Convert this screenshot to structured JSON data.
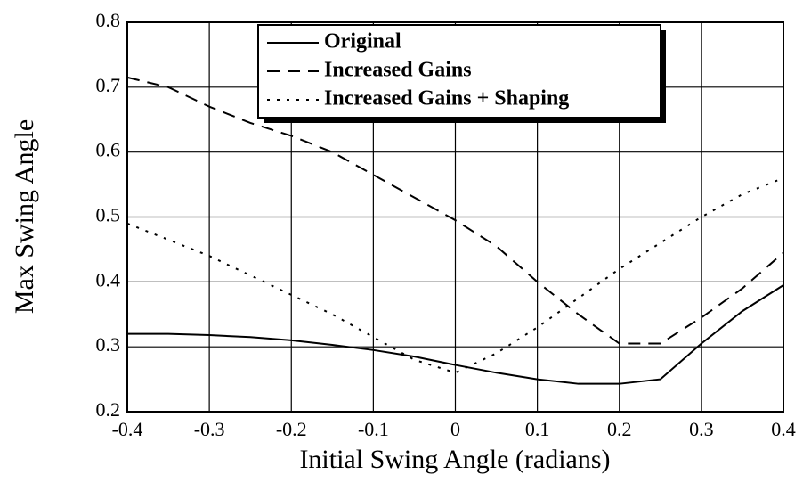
{
  "chart_data": {
    "type": "line",
    "xlabel": "Initial Swing Angle (radians)",
    "ylabel": "Max Swing Angle",
    "x": [
      -0.4,
      -0.35,
      -0.3,
      -0.25,
      -0.2,
      -0.15,
      -0.1,
      -0.05,
      0,
      0.05,
      0.1,
      0.15,
      0.2,
      0.25,
      0.3,
      0.35,
      0.4
    ],
    "series": [
      {
        "name": "Original",
        "color": "#000000",
        "dash": "solid",
        "values": [
          0.32,
          0.32,
          0.318,
          0.315,
          0.31,
          0.303,
          0.295,
          0.285,
          0.272,
          0.26,
          0.25,
          0.243,
          0.243,
          0.25,
          0.305,
          0.355,
          0.395
        ]
      },
      {
        "name": "Increased Gains",
        "color": "#000000",
        "dash": "dashed",
        "values": [
          0.715,
          0.7,
          0.67,
          0.645,
          0.625,
          0.6,
          0.565,
          0.53,
          0.495,
          0.455,
          0.4,
          0.35,
          0.305,
          0.305,
          0.345,
          0.39,
          0.445
        ]
      },
      {
        "name": "Increased Gains + Shaping",
        "color": "#000000",
        "dash": "dotted",
        "values": [
          0.49,
          0.465,
          0.44,
          0.41,
          0.38,
          0.35,
          0.315,
          0.28,
          0.26,
          0.29,
          0.33,
          0.375,
          0.42,
          0.46,
          0.5,
          0.535,
          0.56
        ]
      }
    ],
    "xlim": [
      -0.4,
      0.4
    ],
    "xticks": [
      -0.4,
      -0.3,
      -0.2,
      -0.1,
      0,
      0.1,
      0.2,
      0.3,
      0.4
    ],
    "ylim": [
      0.2,
      0.8
    ],
    "yticks": [
      0.2,
      0.3,
      0.4,
      0.5,
      0.6,
      0.7,
      0.8
    ],
    "grid": true,
    "legend": "top"
  }
}
